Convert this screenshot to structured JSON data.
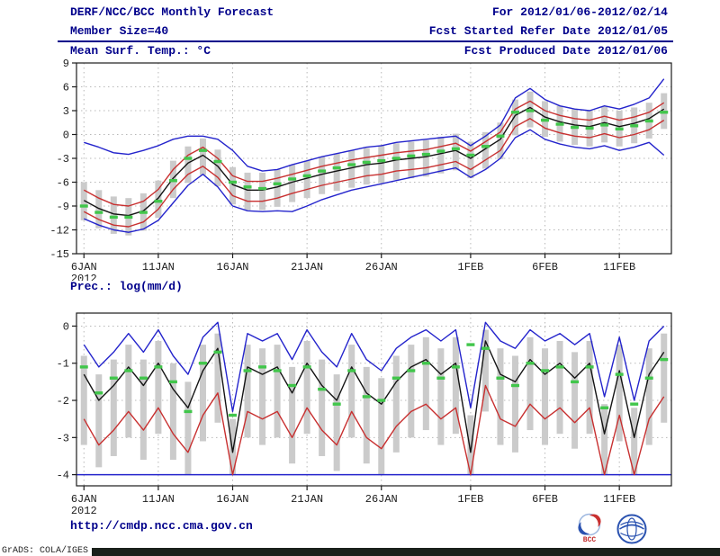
{
  "header": {
    "title": "DERF/NCC/BCC Monthly Forecast",
    "member_size": "Member Size=40",
    "variable_label": "Mean Surf. Temp.: °C",
    "forecast_range": "For 2012/01/06-2012/02/14",
    "refer_date": "Fcst Started Refer Date 2012/01/05",
    "produced_date": "Fcst Produced Date 2012/01/06"
  },
  "bottom_panel_label": "Prec.: log(mm/d)",
  "footer": {
    "url": "http://cmdp.ncc.cma.gov.cn",
    "grads_credit": "GrADS: COLA/IGES",
    "logo1_label": "BCC"
  },
  "colors": {
    "navy": "#00008b",
    "frame": "#1c1c1c",
    "label": "#1c1c1c",
    "grid": "#b8b8b8",
    "blue": "#2424cc",
    "red": "#c83030",
    "black": "#141414",
    "green": "#41c64b",
    "gray": "#cbcbcb",
    "footer_bar": "#1a211b"
  },
  "chart_data": [
    {
      "type": "line",
      "title": "Mean Surf. Temp.: °C",
      "xlabel": "",
      "ylabel": "",
      "n_points": 40,
      "ylim": [
        -15,
        9
      ],
      "yticks": [
        9,
        6,
        3,
        0,
        -3,
        -6,
        -9,
        -12,
        -15
      ],
      "grid": true,
      "xticks": [
        {
          "index": 0,
          "label": "6JAN",
          "sub": "2012"
        },
        {
          "index": 5,
          "label": "11JAN"
        },
        {
          "index": 10,
          "label": "16JAN"
        },
        {
          "index": 15,
          "label": "21JAN"
        },
        {
          "index": 20,
          "label": "26JAN"
        },
        {
          "index": 26,
          "label": "1FEB"
        },
        {
          "index": 31,
          "label": "6FEB"
        },
        {
          "index": 36,
          "label": "11FEB"
        }
      ],
      "series": [
        {
          "name": "member-spread-bar",
          "type": "bar-range",
          "color": "gray",
          "top": [
            -6.0,
            -7.0,
            -7.8,
            -8.0,
            -7.4,
            -5.8,
            -3.3,
            -1.5,
            -0.5,
            -1.9,
            -4.1,
            -4.8,
            -4.8,
            -4.4,
            -3.8,
            -3.3,
            -2.8,
            -2.4,
            -2.0,
            -1.7,
            -1.4,
            -1.1,
            -0.9,
            -0.7,
            -0.3,
            0.1,
            -0.9,
            0.3,
            1.5,
            4.4,
            5.4,
            4.2,
            3.6,
            3.2,
            3.0,
            3.5,
            3.0,
            3.4,
            4.0,
            5.2
          ],
          "bottom": [
            -10.8,
            -11.8,
            -12.5,
            -12.7,
            -12.1,
            -10.5,
            -8.0,
            -6.1,
            -5.1,
            -6.5,
            -8.8,
            -9.5,
            -9.5,
            -9.1,
            -8.5,
            -8.0,
            -7.5,
            -7.1,
            -6.7,
            -6.3,
            -6.1,
            -5.7,
            -5.5,
            -5.3,
            -4.9,
            -4.5,
            -5.5,
            -4.3,
            -3.1,
            -0.1,
            0.9,
            -0.3,
            -0.9,
            -1.3,
            -1.5,
            -1.0,
            -1.5,
            -1.1,
            -0.5,
            0.7
          ]
        },
        {
          "name": "ensemble-max",
          "type": "line",
          "color": "blue",
          "values": [
            -1.0,
            -1.6,
            -2.3,
            -2.5,
            -2.0,
            -1.4,
            -0.6,
            -0.2,
            -0.2,
            -0.6,
            -2.0,
            -4.0,
            -4.6,
            -4.4,
            -3.8,
            -3.3,
            -2.8,
            -2.4,
            -2.0,
            -1.6,
            -1.4,
            -1.0,
            -0.8,
            -0.6,
            -0.4,
            -0.2,
            -1.4,
            -0.2,
            1.2,
            4.6,
            5.8,
            4.4,
            3.6,
            3.2,
            3.0,
            3.6,
            3.2,
            3.8,
            4.6,
            7.0
          ]
        },
        {
          "name": "ensemble-min",
          "type": "line",
          "color": "blue",
          "values": [
            -10.6,
            -11.4,
            -12.0,
            -12.3,
            -11.9,
            -10.8,
            -8.6,
            -6.4,
            -5.0,
            -6.6,
            -9.0,
            -9.6,
            -9.7,
            -9.6,
            -9.7,
            -9.0,
            -8.2,
            -7.6,
            -7.0,
            -6.6,
            -6.2,
            -5.8,
            -5.4,
            -5.0,
            -4.6,
            -4.2,
            -5.4,
            -4.4,
            -3.0,
            -0.4,
            0.6,
            -0.6,
            -1.2,
            -1.6,
            -1.8,
            -1.4,
            -2.0,
            -1.6,
            -1.0,
            -2.6
          ]
        },
        {
          "name": "upper-quartile",
          "type": "line",
          "color": "red",
          "values": [
            -7.0,
            -8.0,
            -8.8,
            -9.0,
            -8.4,
            -6.9,
            -4.4,
            -2.6,
            -1.6,
            -3.0,
            -5.2,
            -5.9,
            -5.9,
            -5.5,
            -5.0,
            -4.5,
            -4.0,
            -3.6,
            -3.2,
            -2.9,
            -2.6,
            -2.3,
            -2.1,
            -1.9,
            -1.5,
            -1.1,
            -2.1,
            -0.9,
            0.3,
            3.2,
            4.2,
            3.0,
            2.4,
            2.0,
            1.8,
            2.3,
            1.8,
            2.2,
            2.8,
            4.0
          ]
        },
        {
          "name": "lower-quartile",
          "type": "line",
          "color": "red",
          "values": [
            -9.7,
            -10.7,
            -11.4,
            -11.6,
            -11.0,
            -9.4,
            -6.9,
            -5.0,
            -4.0,
            -5.4,
            -7.7,
            -8.4,
            -8.4,
            -8.0,
            -7.4,
            -6.9,
            -6.4,
            -6.0,
            -5.6,
            -5.2,
            -5.0,
            -4.6,
            -4.4,
            -4.2,
            -3.8,
            -3.4,
            -4.4,
            -3.2,
            -2.0,
            1.0,
            2.0,
            0.8,
            0.2,
            -0.2,
            -0.4,
            0.1,
            -0.4,
            0.0,
            0.6,
            1.8
          ]
        },
        {
          "name": "ensemble-mean",
          "type": "line",
          "color": "black",
          "values": [
            -8.3,
            -9.3,
            -10.0,
            -10.2,
            -9.6,
            -8.0,
            -5.5,
            -3.6,
            -2.6,
            -4.0,
            -6.3,
            -7.0,
            -7.0,
            -6.6,
            -6.0,
            -5.5,
            -5.0,
            -4.6,
            -4.2,
            -3.8,
            -3.6,
            -3.2,
            -3.0,
            -2.8,
            -2.4,
            -2.0,
            -3.0,
            -1.8,
            -0.6,
            2.4,
            3.4,
            2.2,
            1.6,
            1.2,
            1.0,
            1.5,
            1.0,
            1.4,
            2.0,
            3.2
          ]
        },
        {
          "name": "median-dash",
          "type": "dash-marker",
          "color": "green",
          "values": [
            -9.0,
            -9.8,
            -10.4,
            -10.4,
            -9.8,
            -8.4,
            -5.8,
            -3.0,
            -2.0,
            -3.4,
            -6.0,
            -6.6,
            -6.8,
            -6.2,
            -5.6,
            -5.2,
            -4.6,
            -4.2,
            -3.8,
            -3.5,
            -3.3,
            -3.0,
            -2.7,
            -2.5,
            -2.1,
            -1.8,
            -2.6,
            -1.5,
            -0.2,
            2.8,
            3.0,
            1.8,
            1.3,
            0.9,
            0.8,
            1.2,
            0.7,
            1.1,
            1.7,
            2.8
          ]
        }
      ]
    },
    {
      "type": "line",
      "title": "Prec.: log(mm/d)",
      "xlabel": "",
      "ylabel": "",
      "n_points": 40,
      "ylim": [
        -4.3,
        0.35
      ],
      "yticks": [
        0,
        -1,
        -2,
        -3,
        -4
      ],
      "grid": true,
      "xticks": [
        {
          "index": 0,
          "label": "6JAN",
          "sub": "2012"
        },
        {
          "index": 5,
          "label": "11JAN"
        },
        {
          "index": 10,
          "label": "16JAN"
        },
        {
          "index": 15,
          "label": "21JAN"
        },
        {
          "index": 20,
          "label": "26JAN"
        },
        {
          "index": 26,
          "label": "1FEB"
        },
        {
          "index": 31,
          "label": "6FEB"
        },
        {
          "index": 36,
          "label": "11FEB"
        }
      ],
      "series": [
        {
          "name": "member-spread-bar",
          "type": "bar-range",
          "color": "gray",
          "top": [
            -0.8,
            -1.3,
            -0.9,
            -0.5,
            -0.9,
            -0.4,
            -1.0,
            -1.5,
            -0.5,
            -0.2,
            -2.5,
            -0.5,
            -0.6,
            -0.5,
            -1.1,
            -0.4,
            -0.9,
            -1.3,
            -0.5,
            -1.1,
            -1.4,
            -0.8,
            -0.5,
            -0.3,
            -0.6,
            -0.3,
            -2.4,
            -0.1,
            -0.6,
            -0.8,
            -0.3,
            -0.6,
            -0.4,
            -0.7,
            -0.4,
            -2.1,
            -0.5,
            -2.2,
            -0.6,
            -0.2
          ],
          "bottom": [
            -3.2,
            -3.8,
            -3.5,
            -3.0,
            -3.6,
            -2.9,
            -3.6,
            -4.0,
            -3.1,
            -2.6,
            -4.0,
            -3.0,
            -3.2,
            -3.0,
            -3.7,
            -2.9,
            -3.5,
            -3.9,
            -3.0,
            -3.7,
            -4.0,
            -3.4,
            -3.0,
            -2.8,
            -3.2,
            -2.9,
            -4.0,
            -2.3,
            -3.2,
            -3.4,
            -2.8,
            -3.2,
            -2.9,
            -3.3,
            -2.9,
            -4.0,
            -3.1,
            -4.0,
            -3.2,
            -2.6
          ]
        },
        {
          "name": "min-floor",
          "type": "line",
          "color": "blue",
          "constant": -4
        },
        {
          "name": "ensemble-max",
          "type": "line",
          "color": "blue",
          "values": [
            -0.5,
            -1.1,
            -0.7,
            -0.2,
            -0.7,
            -0.1,
            -0.8,
            -1.3,
            -0.3,
            0.1,
            -2.3,
            -0.2,
            -0.4,
            -0.2,
            -0.9,
            -0.1,
            -0.7,
            -1.1,
            -0.2,
            -0.9,
            -1.2,
            -0.6,
            -0.3,
            -0.1,
            -0.4,
            -0.1,
            -2.2,
            0.1,
            -0.4,
            -0.6,
            -0.1,
            -0.4,
            -0.2,
            -0.5,
            -0.2,
            -1.9,
            -0.3,
            -2.0,
            -0.4,
            0.0
          ]
        },
        {
          "name": "lower-quartile",
          "type": "line",
          "color": "red",
          "values": [
            -2.5,
            -3.2,
            -2.8,
            -2.3,
            -2.8,
            -2.2,
            -2.9,
            -3.4,
            -2.4,
            -1.8,
            -4.0,
            -2.3,
            -2.5,
            -2.3,
            -3.0,
            -2.2,
            -2.8,
            -3.2,
            -2.3,
            -3.0,
            -3.3,
            -2.7,
            -2.3,
            -2.1,
            -2.5,
            -2.2,
            -4.0,
            -1.6,
            -2.5,
            -2.7,
            -2.1,
            -2.5,
            -2.2,
            -2.6,
            -2.2,
            -4.0,
            -2.4,
            -4.0,
            -2.5,
            -1.9
          ]
        },
        {
          "name": "ensemble-mean",
          "type": "line",
          "color": "black",
          "values": [
            -1.3,
            -2.0,
            -1.6,
            -1.1,
            -1.6,
            -1.0,
            -1.7,
            -2.2,
            -1.2,
            -0.6,
            -3.4,
            -1.1,
            -1.3,
            -1.1,
            -1.8,
            -1.0,
            -1.6,
            -2.0,
            -1.1,
            -1.8,
            -2.1,
            -1.5,
            -1.1,
            -0.9,
            -1.3,
            -1.0,
            -3.4,
            -0.4,
            -1.3,
            -1.5,
            -0.9,
            -1.3,
            -1.0,
            -1.4,
            -1.0,
            -2.9,
            -1.2,
            -3.0,
            -1.3,
            -0.7
          ]
        },
        {
          "name": "median-dash",
          "type": "dash-marker",
          "color": "green",
          "values": [
            -1.1,
            -1.8,
            -1.4,
            -1.2,
            -1.4,
            -1.1,
            -1.5,
            -2.3,
            -1.0,
            -0.7,
            -2.4,
            -1.2,
            -1.1,
            -1.2,
            -1.6,
            -1.1,
            -1.7,
            -2.1,
            -1.2,
            -1.9,
            -2.0,
            -1.4,
            -1.2,
            -1.0,
            -1.4,
            -1.1,
            -0.5,
            -0.6,
            -1.4,
            -1.6,
            -1.0,
            -1.2,
            -1.1,
            -1.5,
            -1.1,
            -2.2,
            -1.3,
            -2.1,
            -1.4,
            -0.9
          ]
        }
      ]
    }
  ]
}
